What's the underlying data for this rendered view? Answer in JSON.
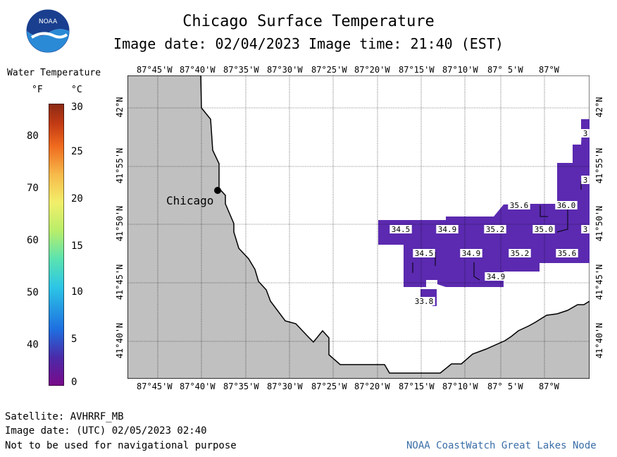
{
  "title": "Chicago Surface Temperature",
  "subtitle": "Image date: 02/04/2023     Image time: 21:40 (EST)",
  "logo": {
    "text": "NOAA",
    "icon": "noaa-logo"
  },
  "legend": {
    "title": "Water Temperature",
    "unit_f": "°F",
    "unit_c": "°C",
    "f_ticks": [
      "80",
      "70",
      "60",
      "50",
      "40"
    ],
    "c_ticks": [
      "30",
      "25",
      "20",
      "15",
      "10",
      "5",
      "0"
    ],
    "range_c": [
      0,
      30
    ],
    "colors": [
      "#7a0a8a",
      "#4b2aa8",
      "#1e6fe0",
      "#2cc6e6",
      "#5be3b0",
      "#b9ee6a",
      "#f2ef6a",
      "#f7b94a",
      "#ef6a1e",
      "#c23a14",
      "#8a2a14"
    ]
  },
  "map": {
    "top_lon_labels": [
      "87°45'W",
      "87°40'W",
      "87°35'W",
      "87°30'W",
      "87°25'W",
      "87°20'W",
      "87°15'W",
      "87°10'W",
      "87° 5'W",
      "87°W"
    ],
    "bottom_lon_labels": [
      "87°45'W",
      "87°40'W",
      "87°35'W",
      "87°30'W",
      "87°25'W",
      "87°20'W",
      "87°15'W",
      "87°10'W",
      "87° 5'W",
      "87°W"
    ],
    "lat_labels": [
      "42°N",
      "41°55'N",
      "41°50'N",
      "41°45'N",
      "41°40'N"
    ],
    "city": "Chicago",
    "land_color": "#c0c0c0",
    "water_color": "#ffffff",
    "temp_color": "#5b2ab0",
    "temp_labels": [
      "35.6",
      "36.0",
      "3",
      "34.5",
      "34.9",
      "35.2",
      "35.0",
      "3",
      "34.5",
      "34.9",
      "35.2",
      "35.6",
      "34.9",
      "33.8",
      "3"
    ]
  },
  "footer": {
    "satellite": "Satellite: AVHRRF_MB",
    "utc_date": "Image date: (UTC) 02/05/2023  02:40",
    "disclaimer": "Not to be used for navigational purpose",
    "credit": "NOAA CoastWatch Great Lakes Node"
  }
}
